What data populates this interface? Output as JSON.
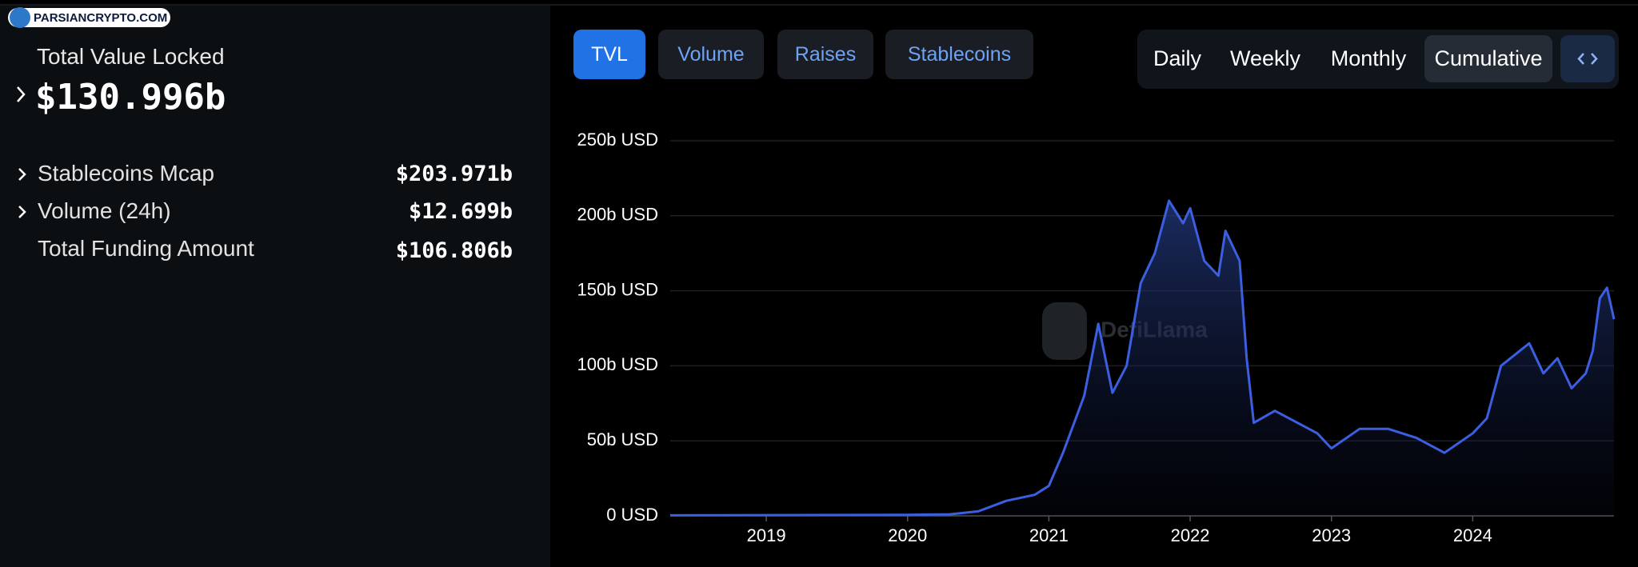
{
  "logo": "PARSIANCRYPTO.COM",
  "summary": {
    "title": "Total Value Locked",
    "value": "$130.996b",
    "rows": [
      {
        "label": "Stablecoins Mcap",
        "value": "$203.971b"
      },
      {
        "label": "Volume (24h)",
        "value": "$12.699b"
      },
      {
        "label": "Total Funding Amount",
        "value": "$106.806b"
      }
    ]
  },
  "tabs": [
    "TVL",
    "Volume",
    "Raises",
    "Stablecoins"
  ],
  "periods": [
    "Daily",
    "Weekly",
    "Monthly",
    "Cumulative"
  ],
  "chart_data": {
    "type": "line",
    "watermark": "DefiLlama",
    "color": "#3b5fe0",
    "grid": true,
    "x": [
      2018.32,
      2019,
      2020,
      2020.3,
      2020.5,
      2020.7,
      2020.9,
      2021.0,
      2021.1,
      2021.25,
      2021.35,
      2021.45,
      2021.55,
      2021.65,
      2021.75,
      2021.85,
      2021.95,
      2022.0,
      2022.1,
      2022.2,
      2022.25,
      2022.35,
      2022.4,
      2022.45,
      2022.6,
      2022.8,
      2022.9,
      2023.0,
      2023.2,
      2023.4,
      2023.6,
      2023.8,
      2024.0,
      2024.1,
      2024.2,
      2024.4,
      2024.5,
      2024.6,
      2024.7,
      2024.8,
      2024.85,
      2024.9,
      2024.95,
      2025.0
    ],
    "values": [
      0.3,
      0.5,
      0.7,
      1,
      3,
      10,
      14,
      20,
      42,
      80,
      128,
      82,
      100,
      155,
      175,
      210,
      195,
      205,
      170,
      160,
      190,
      170,
      105,
      62,
      70,
      60,
      55,
      45,
      58,
      58,
      52,
      42,
      55,
      65,
      100,
      115,
      95,
      105,
      85,
      95,
      110,
      145,
      152,
      131
    ],
    "xlim": [
      2018.32,
      2025.0
    ],
    "xticks": [
      2019,
      2020,
      2021,
      2022,
      2023,
      2024
    ],
    "ylim": [
      0,
      250
    ],
    "yticks": [
      {
        "value": 0,
        "label": "0 USD"
      },
      {
        "value": 50,
        "label": "50b USD"
      },
      {
        "value": 100,
        "label": "100b USD"
      },
      {
        "value": 150,
        "label": "150b USD"
      },
      {
        "value": 200,
        "label": "200b USD"
      },
      {
        "value": 250,
        "label": "250b USD"
      }
    ]
  }
}
